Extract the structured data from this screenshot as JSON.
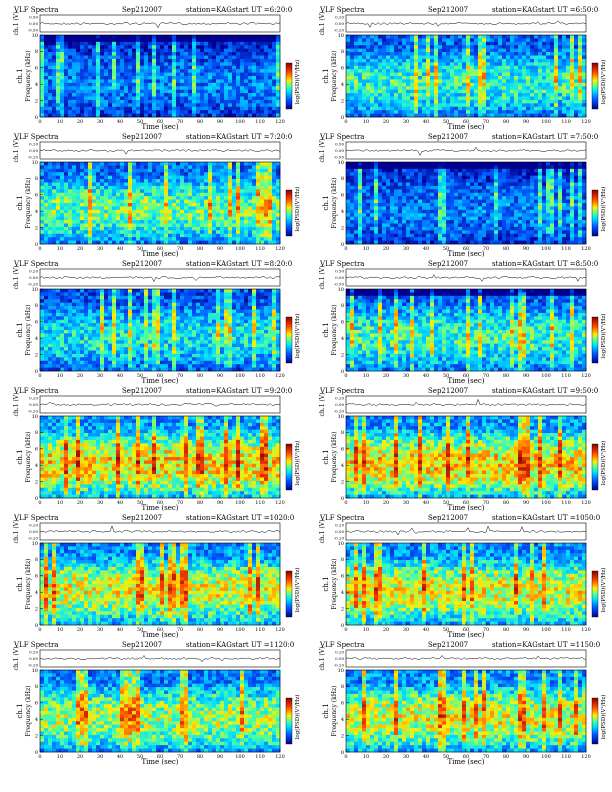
{
  "common": {
    "title_left": "VLF Spectra",
    "date": "Sep212007",
    "station": "station=KAG",
    "xlabel": "Time  (sec)",
    "ylabel_top": "ch.1 (V)",
    "ylabel_bottom_1": "ch.1",
    "ylabel_bottom_2": "Frequency  (kHz)",
    "colorbar_label": "log(PSD)(V²/Hz)"
  },
  "chart_data": [
    {
      "type": "heatmap",
      "start_ut": "start  UT  =6:20:0",
      "xlim": [
        0,
        120
      ],
      "ylim": [
        0,
        10
      ],
      "x_ticks": [
        0,
        10,
        20,
        30,
        40,
        50,
        60,
        70,
        80,
        90,
        100,
        110,
        120
      ],
      "y_ticks": [
        0,
        2,
        4,
        6,
        8,
        10
      ],
      "top_ticks": [
        "0.50",
        "0.00",
        "-0.50"
      ],
      "intensity": 0.25,
      "darkTop": 1
    },
    {
      "type": "heatmap",
      "start_ut": "start  UT  =6:50:0",
      "xlim": [
        0,
        120
      ],
      "ylim": [
        0,
        10
      ],
      "x_ticks": [
        0,
        10,
        20,
        30,
        40,
        50,
        60,
        70,
        80,
        90,
        100,
        110,
        120
      ],
      "y_ticks": [
        0,
        2,
        4,
        6,
        8,
        10
      ],
      "top_ticks": [
        "0.20",
        "0.00",
        "-0.20"
      ],
      "intensity": 0.45,
      "darkTop": 0
    },
    {
      "type": "heatmap",
      "start_ut": "start  UT  =7:20:0",
      "xlim": [
        0,
        120
      ],
      "ylim": [
        0,
        10
      ],
      "x_ticks": [
        0,
        10,
        20,
        30,
        40,
        50,
        60,
        70,
        80,
        90,
        100,
        110,
        120
      ],
      "y_ticks": [
        0,
        2,
        4,
        6,
        8,
        10
      ],
      "top_ticks": [
        "0.20",
        "0.00",
        "-0.20"
      ],
      "intensity": 0.5,
      "darkTop": 0
    },
    {
      "type": "heatmap",
      "start_ut": "start  UT  =7:50:0",
      "xlim": [
        0,
        120
      ],
      "ylim": [
        0,
        10
      ],
      "x_ticks": [
        0,
        10,
        20,
        30,
        40,
        50,
        60,
        70,
        80,
        90,
        100,
        110,
        120
      ],
      "y_ticks": [
        0,
        2,
        4,
        6,
        8,
        10
      ],
      "top_ticks": [
        "0.50",
        "0.00",
        "-0.50"
      ],
      "intensity": 0.25,
      "darkTop": 1
    },
    {
      "type": "heatmap",
      "start_ut": "start  UT  =8:20:0",
      "xlim": [
        0,
        120
      ],
      "ylim": [
        0,
        10
      ],
      "x_ticks": [
        0,
        10,
        20,
        30,
        40,
        50,
        60,
        70,
        80,
        90,
        100,
        110,
        120
      ],
      "y_ticks": [
        0,
        2,
        4,
        6,
        8,
        10
      ],
      "top_ticks": [
        "0.20",
        "0.00",
        "-0.20"
      ],
      "intensity": 0.4,
      "darkTop": 0
    },
    {
      "type": "heatmap",
      "start_ut": "start  UT  =8:50:0",
      "xlim": [
        0,
        120
      ],
      "ylim": [
        0,
        10
      ],
      "x_ticks": [
        0,
        10,
        20,
        30,
        40,
        50,
        60,
        70,
        80,
        90,
        100,
        110,
        120
      ],
      "y_ticks": [
        0,
        2,
        4,
        6,
        8,
        10
      ],
      "top_ticks": [
        "0.50",
        "0.00",
        "-0.50"
      ],
      "intensity": 0.45,
      "darkTop": 1
    },
    {
      "type": "heatmap",
      "start_ut": "start  UT  =9:20:0",
      "xlim": [
        0,
        120
      ],
      "ylim": [
        0,
        10
      ],
      "x_ticks": [
        0,
        10,
        20,
        30,
        40,
        50,
        60,
        70,
        80,
        90,
        100,
        110,
        120
      ],
      "y_ticks": [
        0,
        2,
        4,
        6,
        8,
        10
      ],
      "top_ticks": [
        "0.20",
        "0.00",
        "-0.20"
      ],
      "intensity": 0.65,
      "darkTop": 0
    },
    {
      "type": "heatmap",
      "start_ut": "start  UT  =9:50:0",
      "xlim": [
        0,
        120
      ],
      "ylim": [
        0,
        10
      ],
      "x_ticks": [
        0,
        10,
        20,
        30,
        40,
        50,
        60,
        70,
        80,
        90,
        100,
        110,
        120
      ],
      "y_ticks": [
        0,
        2,
        4,
        6,
        8,
        10
      ],
      "top_ticks": [
        "0.20",
        "0.00",
        "-0.20"
      ],
      "intensity": 0.65,
      "darkTop": 0
    },
    {
      "type": "heatmap",
      "start_ut": "start  UT  =1020:0",
      "xlim": [
        0,
        120
      ],
      "ylim": [
        0,
        10
      ],
      "x_ticks": [
        0,
        10,
        20,
        30,
        40,
        50,
        60,
        70,
        80,
        90,
        100,
        110,
        120
      ],
      "y_ticks": [
        0,
        2,
        4,
        6,
        8,
        10
      ],
      "top_ticks": [
        "0.20",
        "0.00",
        "-0.20"
      ],
      "intensity": 0.6,
      "darkTop": 0
    },
    {
      "type": "heatmap",
      "start_ut": "start  UT  =1050:0",
      "xlim": [
        0,
        120
      ],
      "ylim": [
        0,
        10
      ],
      "x_ticks": [
        0,
        10,
        20,
        30,
        40,
        50,
        60,
        70,
        80,
        90,
        100,
        110,
        120
      ],
      "y_ticks": [
        0,
        2,
        4,
        6,
        8,
        10
      ],
      "top_ticks": [
        "0.20",
        "0.00",
        "-0.20"
      ],
      "intensity": 0.6,
      "darkTop": 0
    },
    {
      "type": "heatmap",
      "start_ut": "start  UT  =1120:0",
      "xlim": [
        0,
        120
      ],
      "ylim": [
        0,
        10
      ],
      "x_ticks": [
        0,
        10,
        20,
        30,
        40,
        50,
        60,
        70,
        80,
        90,
        100,
        110,
        120
      ],
      "y_ticks": [
        0,
        2,
        4,
        6,
        8,
        10
      ],
      "top_ticks": [
        "0.20",
        "0.00",
        "-0.20"
      ],
      "intensity": 0.55,
      "darkTop": 0
    },
    {
      "type": "heatmap",
      "start_ut": "start  UT  =1150:0",
      "xlim": [
        0,
        120
      ],
      "ylim": [
        0,
        10
      ],
      "x_ticks": [
        0,
        10,
        20,
        30,
        40,
        50,
        60,
        70,
        80,
        90,
        100,
        110,
        120
      ],
      "y_ticks": [
        0,
        2,
        4,
        6,
        8,
        10
      ],
      "top_ticks": [
        "0.20",
        "0.00",
        "-0.20"
      ],
      "intensity": 0.6,
      "darkTop": 0
    }
  ]
}
